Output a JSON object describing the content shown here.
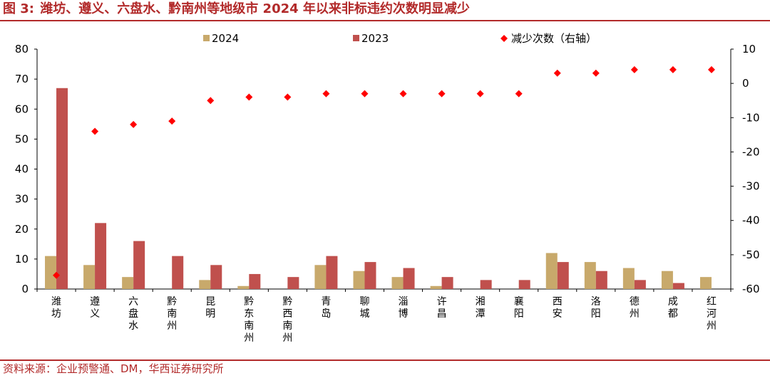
{
  "figure": {
    "label": "图 3:",
    "title": "潍坊、遵义、六盘水、黔南州等地级市 2024 年以来非标违约次数明显减少",
    "source": "资料来源：企业预警通、DM，华西证券研究所"
  },
  "colors": {
    "series_2024": "#c8a96b",
    "series_2023": "#c0504d",
    "series_diff": "#ff0000",
    "title_red": "#b22a2a"
  },
  "chart_data": {
    "type": "bar",
    "categories": [
      "潍坊",
      "遵义",
      "六盘水",
      "黔南州",
      "昆明",
      "黔东南州",
      "黔西南州",
      "青岛",
      "聊城",
      "淄博",
      "许昌",
      "湘潭",
      "襄阳",
      "西安",
      "洛阳",
      "德州",
      "成都",
      "红河州"
    ],
    "series": [
      {
        "name": "2024",
        "type": "bar",
        "axis": "left",
        "values": [
          11,
          8,
          4,
          0,
          3,
          1,
          0,
          8,
          6,
          4,
          1,
          0,
          0,
          12,
          9,
          7,
          6,
          4
        ]
      },
      {
        "name": "2023",
        "type": "bar",
        "axis": "left",
        "values": [
          67,
          22,
          16,
          11,
          8,
          5,
          4,
          11,
          9,
          7,
          4,
          3,
          3,
          9,
          6,
          3,
          2,
          0
        ]
      },
      {
        "name": "减少次数（右轴）",
        "type": "scatter",
        "axis": "right",
        "values": [
          -56,
          -14,
          -12,
          -11,
          -5,
          -4,
          -4,
          -3,
          -3,
          -3,
          -3,
          -3,
          -3,
          3,
          3,
          4,
          4,
          4
        ]
      }
    ],
    "ylim": [
      0,
      80
    ],
    "yticks": [
      0,
      10,
      20,
      30,
      40,
      50,
      60,
      70,
      80
    ],
    "y2lim": [
      -60,
      10
    ],
    "y2ticks": [
      -60,
      -50,
      -40,
      -30,
      -20,
      -10,
      0,
      10
    ],
    "grid": false,
    "legend": "top"
  }
}
